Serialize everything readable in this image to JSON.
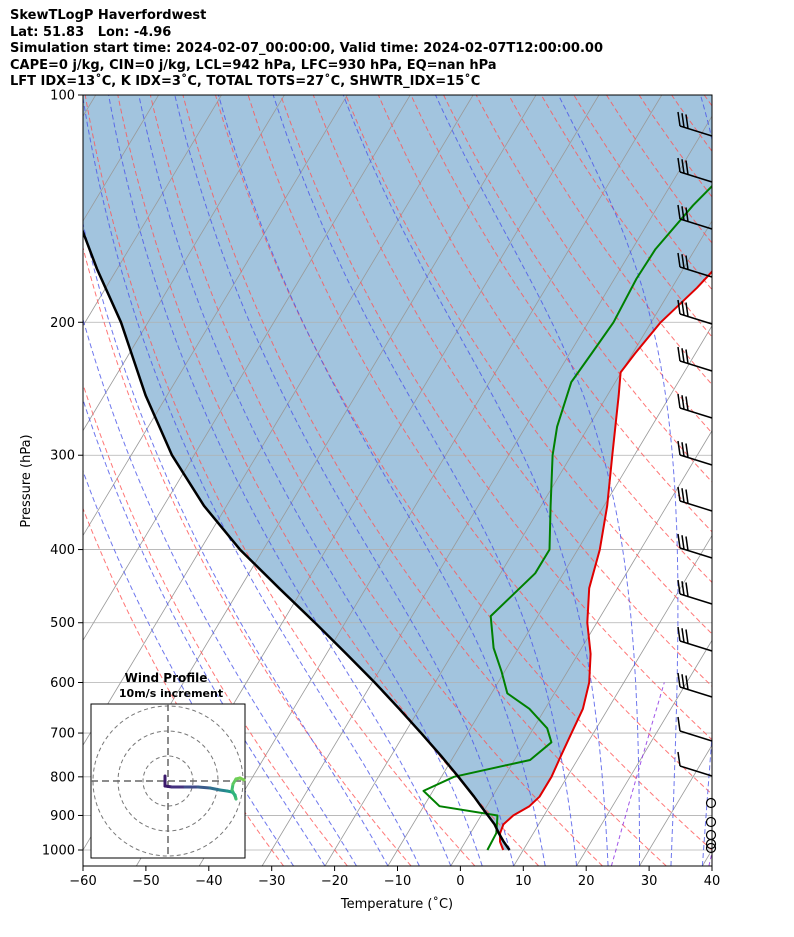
{
  "header": {
    "lines": [
      "SkewTLogP Haverfordwest",
      "Lat: 51.83   Lon: -4.96",
      "Simulation start time: 2024-02-07_00:00:00, Valid time: 2024-02-07T12:00:00.00",
      "CAPE=0 j/kg, CIN=0 j/kg, LCL=942 hPa, LFC=930 hPa, EQ=nan hPa",
      "LFT IDX=13˚C, K IDX=3˚C, TOTAL TOTS=27˚C, SHWTR_IDX=15˚C"
    ]
  },
  "chart_data": {
    "type": "line",
    "subtype": "skew-t log-p",
    "xlabel": "Temperature (˚C)",
    "ylabel": "Pressure (hPa)",
    "xlim": [
      -60,
      40
    ],
    "ylim": [
      1050,
      100
    ],
    "yscale": "log",
    "x_ticks": [
      -60,
      -50,
      -40,
      -30,
      -20,
      -10,
      0,
      10,
      20,
      30,
      40
    ],
    "x_tick_labels": [
      "−60",
      "−50",
      "−40",
      "−30",
      "−20",
      "−10",
      "0",
      "10",
      "20",
      "30",
      "40"
    ],
    "y_ticks": [
      1000,
      900,
      800,
      700,
      600,
      500,
      400,
      300,
      200,
      100
    ],
    "y_tick_labels": [
      "1000",
      "900",
      "800",
      "700",
      "600",
      "500",
      "400",
      "300",
      "200",
      "100"
    ],
    "grid": true,
    "colors": {
      "temperature": "#e00000",
      "dewpoint": "#008000",
      "parcel": "#000000",
      "cape_fill": "#a2c4de",
      "dry_adiabat": "#ff5555",
      "moist_adiabat": "#4a55e8",
      "mixing_ratio": "#8a2be2",
      "isotherm": "#999999"
    },
    "series": [
      {
        "key": "temperature",
        "points": [
          [
            6.8,
            1000
          ],
          [
            5.5,
            975
          ],
          [
            4.7,
            950
          ],
          [
            4.4,
            925
          ],
          [
            5.1,
            900
          ],
          [
            6.8,
            875
          ],
          [
            7.5,
            850
          ],
          [
            7.5,
            800
          ],
          [
            7.0,
            750
          ],
          [
            6.5,
            700
          ],
          [
            6.0,
            650
          ],
          [
            4.5,
            600
          ],
          [
            2.0,
            550
          ],
          [
            -1.5,
            500
          ],
          [
            -4.5,
            450
          ],
          [
            -6.5,
            400
          ],
          [
            -9.5,
            350
          ],
          [
            -13.5,
            300
          ],
          [
            -18.2,
            250
          ],
          [
            -20.1,
            233
          ],
          [
            -19.6,
            220
          ],
          [
            -18.5,
            200
          ],
          [
            -16.0,
            180
          ],
          [
            -14.0,
            160
          ],
          [
            -12.5,
            145
          ],
          [
            -11.5,
            135
          ],
          [
            -10.5,
            125
          ],
          [
            -8.5,
            110
          ],
          [
            -7.6,
            100
          ]
        ]
      },
      {
        "key": "dewpoint",
        "points": [
          [
            4.3,
            1000
          ],
          [
            4.1,
            950
          ],
          [
            2.6,
            900
          ],
          [
            -7.5,
            875
          ],
          [
            -11.5,
            835
          ],
          [
            -8.0,
            800
          ],
          [
            2.5,
            760
          ],
          [
            4.2,
            720
          ],
          [
            2.2,
            690
          ],
          [
            -2.5,
            650
          ],
          [
            -7.5,
            620
          ],
          [
            -10.5,
            580
          ],
          [
            -14.0,
            540
          ],
          [
            -17.5,
            490
          ],
          [
            -14.5,
            430
          ],
          [
            -14.5,
            400
          ],
          [
            -18.5,
            350
          ],
          [
            -23.0,
            300
          ],
          [
            -25.0,
            275
          ],
          [
            -27.0,
            240
          ],
          [
            -26.5,
            220
          ],
          [
            -26.0,
            200
          ],
          [
            -26.5,
            175
          ],
          [
            -26.3,
            160
          ],
          [
            -24.5,
            140
          ],
          [
            -23.0,
            130
          ],
          [
            -20.5,
            120
          ],
          [
            -15.8,
            100
          ]
        ]
      },
      {
        "key": "parcel",
        "points": [
          [
            7.8,
            1000
          ],
          [
            6.1,
            975
          ],
          [
            4.5,
            950
          ],
          [
            3.0,
            925
          ],
          [
            1.1,
            900
          ],
          [
            -0.9,
            875
          ],
          [
            -2.9,
            850
          ],
          [
            -7.3,
            800
          ],
          [
            -12.1,
            750
          ],
          [
            -17.4,
            700
          ],
          [
            -23.2,
            650
          ],
          [
            -29.6,
            600
          ],
          [
            -36.8,
            550
          ],
          [
            -44.8,
            500
          ],
          [
            -53.8,
            450
          ],
          [
            -63.7,
            400
          ],
          [
            -73.6,
            350
          ],
          [
            -83.5,
            300
          ],
          [
            -93.4,
            250
          ],
          [
            -104.3,
            200
          ],
          [
            -113.2,
            170
          ],
          [
            -123.1,
            140
          ],
          [
            -133.6,
            120
          ],
          [
            -146.0,
            100
          ]
        ]
      }
    ],
    "wind_barbs_side": "right",
    "hodograph": {
      "title": "Wind Profile",
      "subtitle": "10m/s increment"
    }
  }
}
